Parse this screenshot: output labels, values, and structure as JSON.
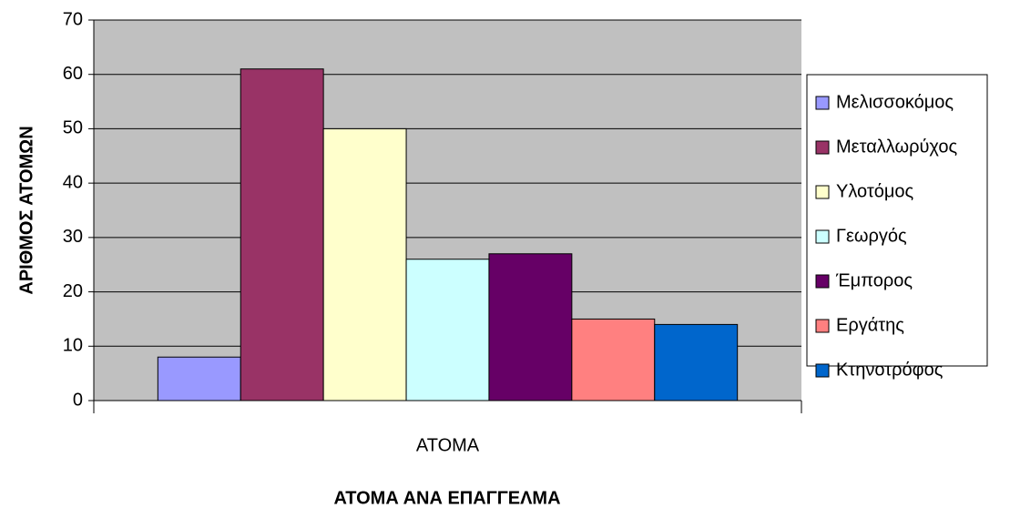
{
  "chart_data": {
    "type": "bar",
    "title": "ΑΤΟΜΑ ΑΝΑ ΕΠΑΓΓΕΛΜΑ",
    "y_label": "ΑΡΙΘΜΟΣ ΑΤΟΜΩΝ",
    "categories": [
      "ΑΤΟΜΑ"
    ],
    "series": [
      {
        "name": "Μελισσοκόμος",
        "color": "#9999ff",
        "values": [
          8
        ]
      },
      {
        "name": "Μεταλλωρύχος",
        "color": "#993366",
        "values": [
          61
        ]
      },
      {
        "name": "Υλοτόμος",
        "color": "#ffffcc",
        "values": [
          50
        ]
      },
      {
        "name": "Γεωργός",
        "color": "#ccffff",
        "values": [
          26
        ]
      },
      {
        "name": "Έμπορος",
        "color": "#660066",
        "values": [
          27
        ]
      },
      {
        "name": "Εργάτης",
        "color": "#ff8080",
        "values": [
          15
        ]
      },
      {
        "name": "Κτηνοτρόφος",
        "color": "#0066cc",
        "values": [
          14
        ]
      }
    ],
    "ylim": [
      0,
      70
    ],
    "yticks": [
      0,
      10,
      20,
      30,
      40,
      50,
      60,
      70
    ],
    "grid": true,
    "legend": "right"
  }
}
